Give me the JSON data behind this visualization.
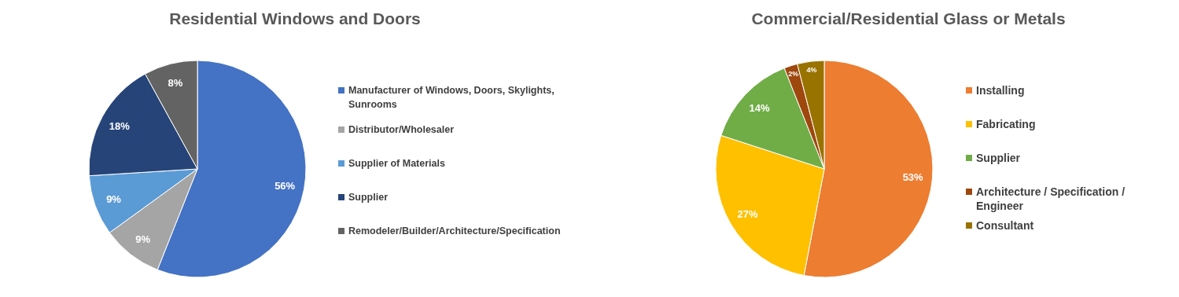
{
  "chart_data": [
    {
      "type": "pie",
      "title": "Residential Windows and Doors",
      "categories": [
        "Manufacturer of Windows, Doors, Skylights, Sunrooms",
        "Distributor/Wholesaler",
        "Supplier of Materials",
        "Supplier",
        "Remodeler/Builder/Architecture/Specification"
      ],
      "values": [
        56,
        9,
        9,
        18,
        8
      ],
      "colors": [
        "#4472c4",
        "#a5a5a5",
        "#5b9bd5",
        "#264478",
        "#636363"
      ],
      "value_labels": [
        "56%",
        "9%",
        "9%",
        "18%",
        "8%"
      ],
      "legend": "right"
    },
    {
      "type": "pie",
      "title": "Commercial/Residential Glass or Metals",
      "categories": [
        "Installing",
        "Fabricating",
        "Supplier",
        "Architecture / Specification / Engineer",
        "Consultant"
      ],
      "values": [
        53,
        27,
        14,
        2,
        4
      ],
      "colors": [
        "#ed7d31",
        "#ffc000",
        "#70ad47",
        "#9e480e",
        "#997300"
      ],
      "value_labels": [
        "53%",
        "27%",
        "14%",
        "2%",
        "4%"
      ],
      "legend": "right"
    }
  ]
}
